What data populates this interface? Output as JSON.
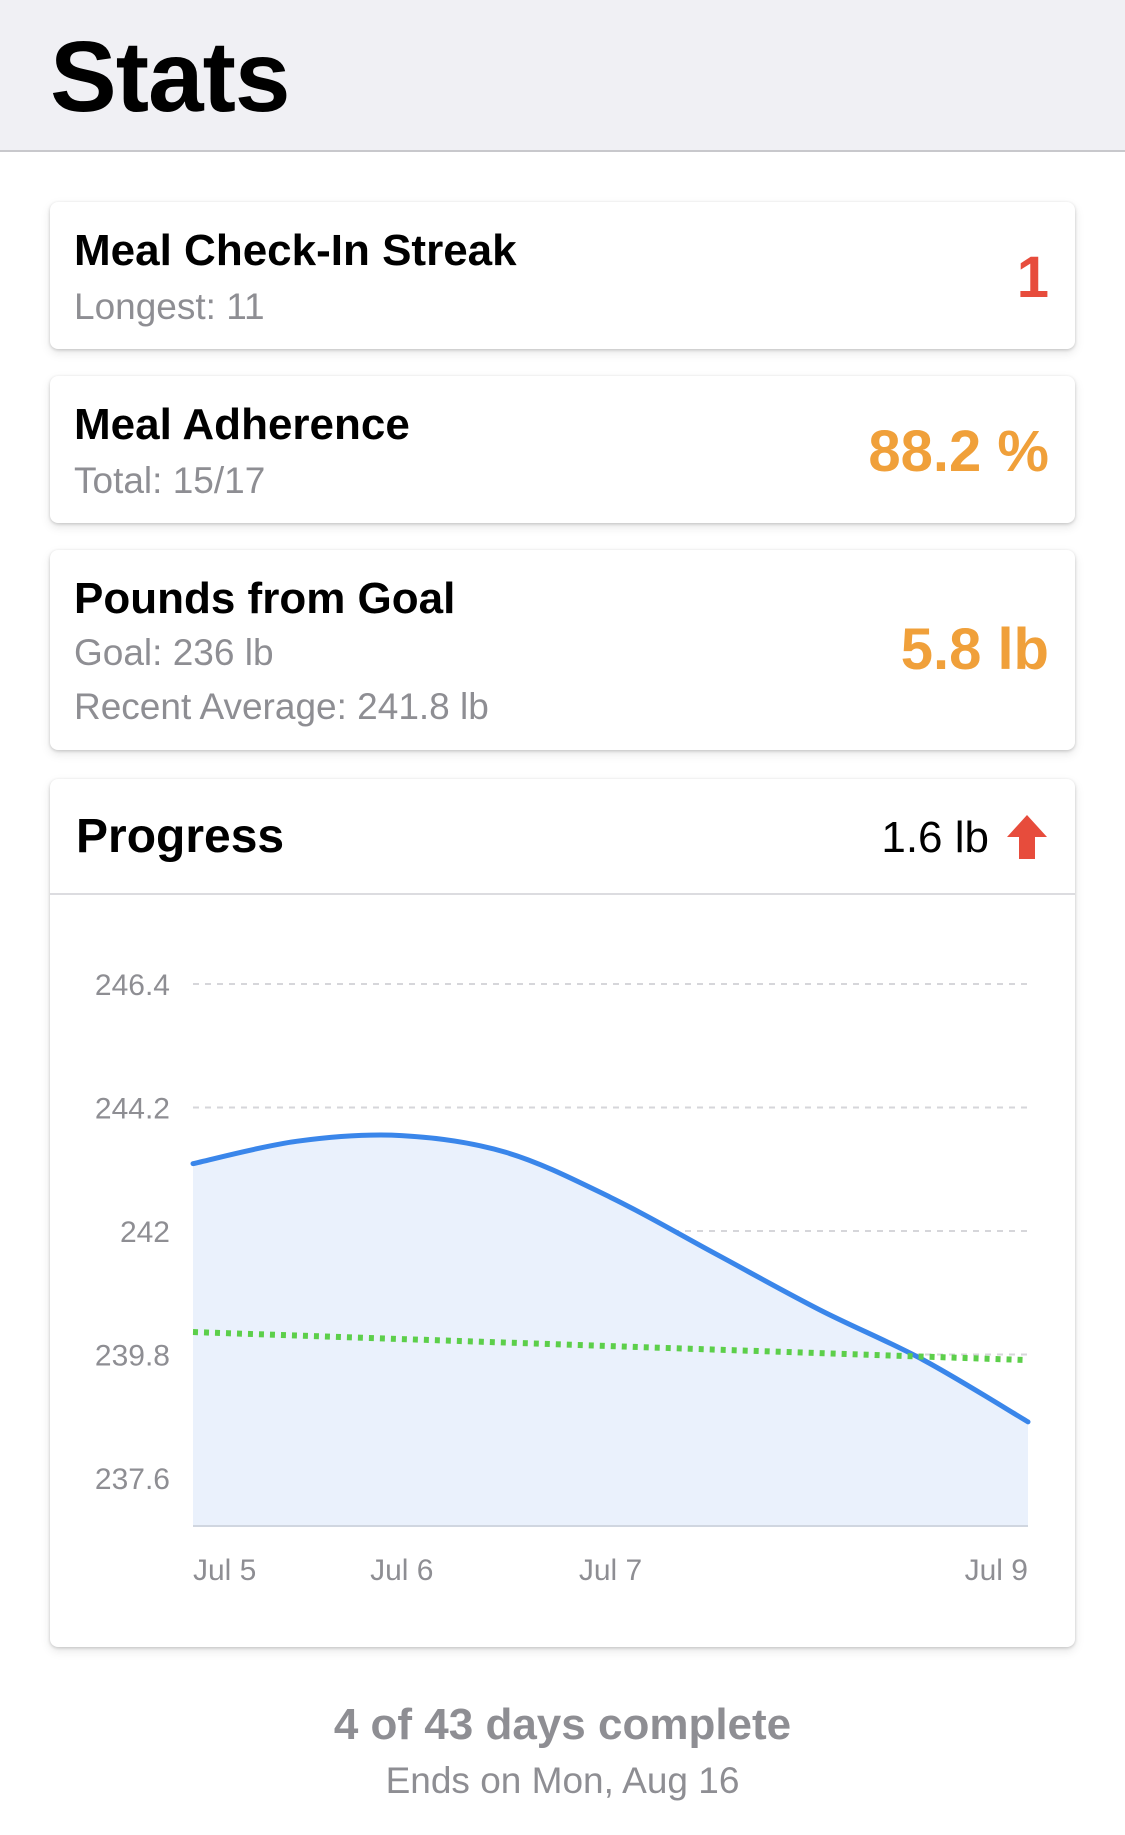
{
  "header": {
    "title": "Stats"
  },
  "streak": {
    "title": "Meal Check-In Streak",
    "longest": "Longest: 11",
    "value": "1",
    "value_color": "#e74c3c"
  },
  "adherence": {
    "title": "Meal Adherence",
    "total": "Total: 15/17",
    "value": "88.2 %",
    "value_color": "#f0a03a"
  },
  "goal": {
    "title": "Pounds from Goal",
    "goal_line": "Goal: 236 lb",
    "recent_line": "Recent Average: 241.8 lb",
    "value": "5.8 lb",
    "value_color": "#f0a03a"
  },
  "progress": {
    "title": "Progress",
    "change": "1.6 lb",
    "change_icon": "arrow-up-icon",
    "change_icon_color": "#e74c3c"
  },
  "chart_data": {
    "type": "line",
    "title": "",
    "xlabel": "",
    "ylabel": "",
    "y_ticks": [
      "246.4",
      "244.2",
      "242",
      "239.8",
      "237.6"
    ],
    "y_tick_values": [
      246.4,
      244.2,
      242.0,
      239.8,
      237.6
    ],
    "x_ticks": [
      "Jul 5",
      "Jul 6",
      "Jul 7",
      "Jul 9"
    ],
    "x_tick_days": [
      0,
      1,
      2,
      4
    ],
    "ylim": [
      236.2,
      247.8
    ],
    "grid": true,
    "series": [
      {
        "style": "solid-area",
        "color": "#3a86ea",
        "fill": "#eaf1fc",
        "x": [
          0,
          0.5,
          1.0,
          1.5,
          2.0,
          2.5,
          3.0,
          3.5,
          4.0
        ],
        "values": [
          243.2,
          243.6,
          243.7,
          243.4,
          242.6,
          241.6,
          240.6,
          239.7,
          238.6
        ]
      },
      {
        "style": "dotted",
        "color": "#5ccf4a",
        "x": [
          0,
          4
        ],
        "values": [
          240.2,
          239.7
        ]
      }
    ]
  },
  "footer": {
    "days_complete": "4 of 43 days complete",
    "ends_on": "Ends on Mon, Aug 16"
  }
}
